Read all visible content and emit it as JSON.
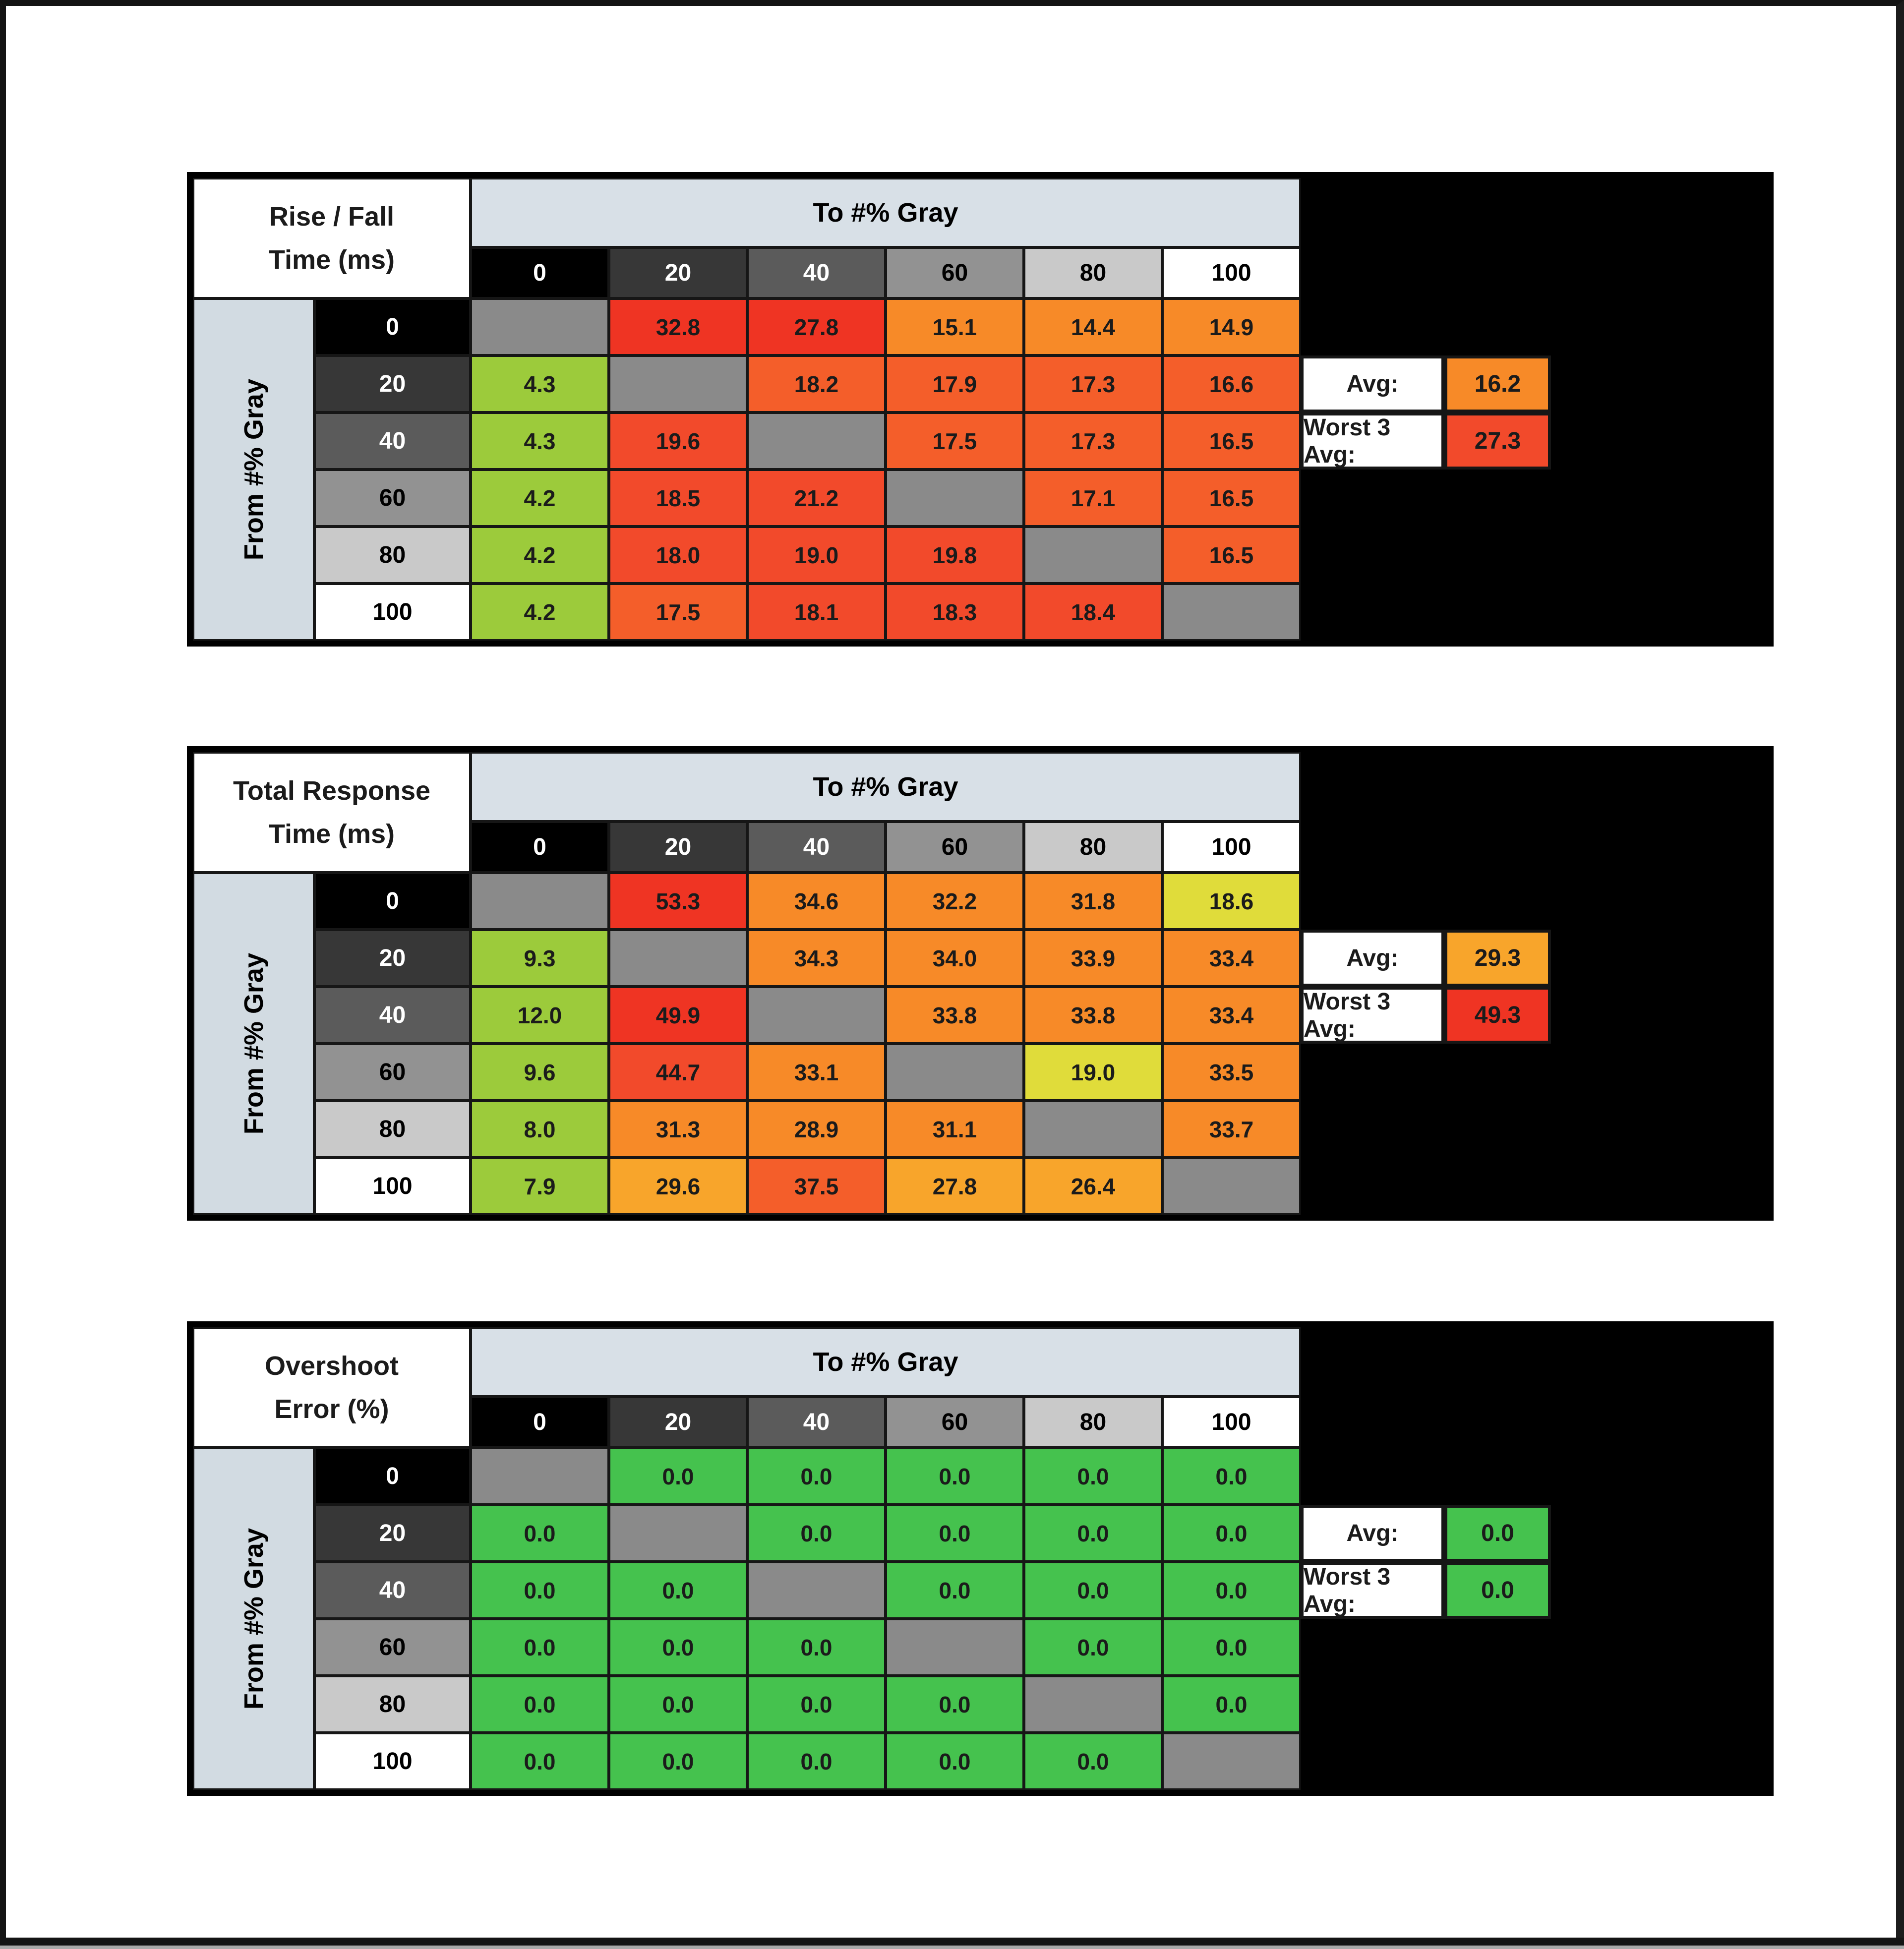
{
  "window": {
    "background": "#ffffff",
    "frame_color": "#141414",
    "bottom_strip_color": "#a9a9a9"
  },
  "palette": {
    "green": "#45c24e",
    "yellowgreen": "#9ccb3b",
    "yellow": "#e0dc3a",
    "amber": "#f8a52b",
    "orange": "#f78a28",
    "orangered": "#f45e2a",
    "red2": "#f24a2b",
    "red": "#ef3423",
    "diag": "#8a8a8a",
    "header_band": "#d8e0e7",
    "side_label": "#d2dbe2",
    "row_shades": [
      "#000000",
      "#373737",
      "#5b5b5b",
      "#929292",
      "#c9c9c9",
      "#ffffff"
    ],
    "row_shade_text": [
      "#ffffff",
      "#ffffff",
      "#ffffff",
      "#000000",
      "#000000",
      "#000000"
    ]
  },
  "chart_data": [
    {
      "type": "heatmap",
      "title": "Rise / Fall Time (ms)",
      "title_lines": [
        "Rise / Fall",
        "Time (ms)"
      ],
      "x_label": "To #% Gray",
      "y_label": "From #% Gray",
      "x_ticks": [
        "0",
        "20",
        "40",
        "60",
        "80",
        "100"
      ],
      "y_ticks": [
        "0",
        "20",
        "40",
        "60",
        "80",
        "100"
      ],
      "values": [
        [
          null,
          32.8,
          27.8,
          15.1,
          14.4,
          14.9
        ],
        [
          4.3,
          null,
          18.2,
          17.9,
          17.3,
          16.6
        ],
        [
          4.3,
          19.6,
          null,
          17.5,
          17.3,
          16.5
        ],
        [
          4.2,
          18.5,
          21.2,
          null,
          17.1,
          16.5
        ],
        [
          4.2,
          18.0,
          19.0,
          19.8,
          null,
          16.5
        ],
        [
          4.2,
          17.5,
          18.1,
          18.3,
          18.4,
          null
        ]
      ],
      "cell_colors": [
        [
          "diag",
          "red",
          "red",
          "orange",
          "orange",
          "orange"
        ],
        [
          "yellowgreen",
          "diag",
          "orangered",
          "orangered",
          "orangered",
          "orangered"
        ],
        [
          "yellowgreen",
          "red2",
          "diag",
          "orangered",
          "orangered",
          "orangered"
        ],
        [
          "yellowgreen",
          "red2",
          "red2",
          "diag",
          "orangered",
          "orangered"
        ],
        [
          "yellowgreen",
          "red2",
          "red2",
          "red2",
          "diag",
          "orangered"
        ],
        [
          "yellowgreen",
          "orangered",
          "red2",
          "red2",
          "red2",
          "diag"
        ]
      ],
      "summary": {
        "avg_label": "Avg:",
        "avg": 16.2,
        "avg_color": "orange",
        "worst3_label": "Worst 3 Avg:",
        "worst3": 27.3,
        "worst3_color": "red2"
      }
    },
    {
      "type": "heatmap",
      "title": "Total Response Time (ms)",
      "title_lines": [
        "Total Response",
        "Time (ms)"
      ],
      "x_label": "To #% Gray",
      "y_label": "From #% Gray",
      "x_ticks": [
        "0",
        "20",
        "40",
        "60",
        "80",
        "100"
      ],
      "y_ticks": [
        "0",
        "20",
        "40",
        "60",
        "80",
        "100"
      ],
      "values": [
        [
          null,
          53.3,
          34.6,
          32.2,
          31.8,
          18.6
        ],
        [
          9.3,
          null,
          34.3,
          34.0,
          33.9,
          33.4
        ],
        [
          12.0,
          49.9,
          null,
          33.8,
          33.8,
          33.4
        ],
        [
          9.6,
          44.7,
          33.1,
          null,
          19.0,
          33.5
        ],
        [
          8.0,
          31.3,
          28.9,
          31.1,
          null,
          33.7
        ],
        [
          7.9,
          29.6,
          37.5,
          27.8,
          26.4,
          null
        ]
      ],
      "cell_colors": [
        [
          "diag",
          "red",
          "orange",
          "orange",
          "orange",
          "yellow"
        ],
        [
          "yellowgreen",
          "diag",
          "orange",
          "orange",
          "orange",
          "orange"
        ],
        [
          "yellowgreen",
          "red",
          "diag",
          "orange",
          "orange",
          "orange"
        ],
        [
          "yellowgreen",
          "red2",
          "orange",
          "diag",
          "yellow",
          "orange"
        ],
        [
          "yellowgreen",
          "orange",
          "orange",
          "orange",
          "diag",
          "orange"
        ],
        [
          "yellowgreen",
          "amber",
          "orangered",
          "amber",
          "amber",
          "diag"
        ]
      ],
      "summary": {
        "avg_label": "Avg:",
        "avg": 29.3,
        "avg_color": "amber",
        "worst3_label": "Worst 3 Avg:",
        "worst3": 49.3,
        "worst3_color": "red"
      }
    },
    {
      "type": "heatmap",
      "title": "Overshoot Error (%)",
      "title_lines": [
        "Overshoot",
        "Error (%)"
      ],
      "x_label": "To #% Gray",
      "y_label": "From #% Gray",
      "x_ticks": [
        "0",
        "20",
        "40",
        "60",
        "80",
        "100"
      ],
      "y_ticks": [
        "0",
        "20",
        "40",
        "60",
        "80",
        "100"
      ],
      "values": [
        [
          null,
          0.0,
          0.0,
          0.0,
          0.0,
          0.0
        ],
        [
          0.0,
          null,
          0.0,
          0.0,
          0.0,
          0.0
        ],
        [
          0.0,
          0.0,
          null,
          0.0,
          0.0,
          0.0
        ],
        [
          0.0,
          0.0,
          0.0,
          null,
          0.0,
          0.0
        ],
        [
          0.0,
          0.0,
          0.0,
          0.0,
          null,
          0.0
        ],
        [
          0.0,
          0.0,
          0.0,
          0.0,
          0.0,
          null
        ]
      ],
      "cell_colors": [
        [
          "diag",
          "green",
          "green",
          "green",
          "green",
          "green"
        ],
        [
          "green",
          "diag",
          "green",
          "green",
          "green",
          "green"
        ],
        [
          "green",
          "green",
          "diag",
          "green",
          "green",
          "green"
        ],
        [
          "green",
          "green",
          "green",
          "diag",
          "green",
          "green"
        ],
        [
          "green",
          "green",
          "green",
          "green",
          "diag",
          "green"
        ],
        [
          "green",
          "green",
          "green",
          "green",
          "green",
          "diag"
        ]
      ],
      "summary": {
        "avg_label": "Avg:",
        "avg": 0.0,
        "avg_color": "green",
        "worst3_label": "Worst 3 Avg:",
        "worst3": 0.0,
        "worst3_color": "green"
      }
    }
  ]
}
